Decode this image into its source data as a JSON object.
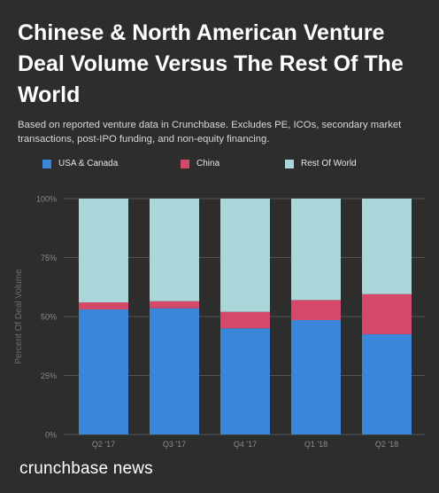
{
  "header": {
    "title": "Chinese & North American Venture Deal Volume Versus The Rest Of The World",
    "subtitle": "Based on reported venture data in Crunchbase. Excludes PE, ICOs, secondary market transactions, post-IPO funding, and non-equity financing."
  },
  "brand": {
    "name": "crunchbase news"
  },
  "colors": {
    "background": "#2d2d2d",
    "usa_canada": "#3a86d8",
    "china": "#d5486a",
    "rest_of_world": "#a9d6d8",
    "grid": "#555555",
    "text_muted": "#8a8a8a"
  },
  "chart_data": {
    "type": "bar",
    "stacked": true,
    "categories": [
      "Q2 '17",
      "Q3 '17",
      "Q4 '17",
      "Q1 '18",
      "Q2 '18"
    ],
    "series": [
      {
        "name": "USA & Canada",
        "values": [
          53,
          53.5,
          45,
          48.5,
          42.5
        ]
      },
      {
        "name": "China",
        "values": [
          3,
          3,
          7,
          8.5,
          17
        ]
      },
      {
        "name": "Rest Of World",
        "values": [
          44,
          43.5,
          48,
          43,
          40.5
        ]
      }
    ],
    "ylabel": "Percent Of Deal Volume",
    "xlabel": "",
    "ylim": [
      0,
      100
    ],
    "yticks": [
      "0%",
      "25%",
      "50%",
      "75%",
      "100%"
    ],
    "ytick_values": [
      0,
      25,
      50,
      75,
      100
    ],
    "grid": true,
    "legend_position": "top"
  }
}
